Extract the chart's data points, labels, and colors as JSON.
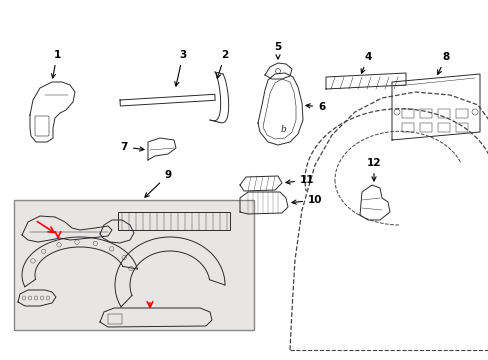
{
  "background": "#ffffff",
  "line_color": "#2a2a2a",
  "box_fill": "#e8e5e5",
  "box_edge": "#888888",
  "fig_w": 4.89,
  "fig_h": 3.6,
  "dpi": 100
}
